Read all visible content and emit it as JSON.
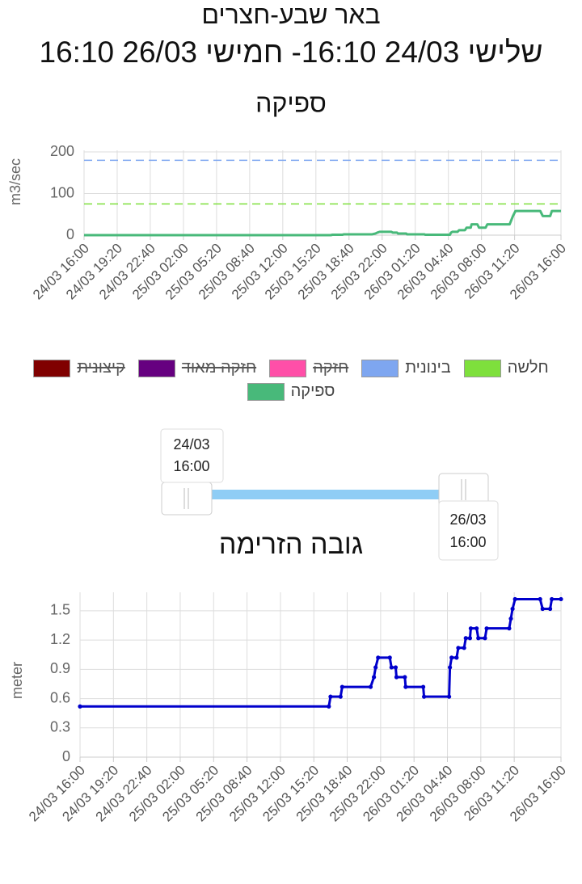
{
  "header": {
    "title": "באר שבע-חצרים",
    "subtitle": "שלישי 24/03 16:10- חמישי 26/03 16:10"
  },
  "slider": {
    "start": {
      "date": "24/03",
      "time": "16:00"
    },
    "end": {
      "date": "26/03",
      "time": "16:00"
    }
  },
  "chart_data": [
    {
      "type": "line",
      "title": "ספיקה",
      "y_label": "m3/sec",
      "x": [
        "24/03 16:00",
        "25/03 16:50",
        "25/03 17:00",
        "25/03 18:00",
        "25/03 18:10",
        "25/03 21:00",
        "25/03 21:20",
        "25/03 21:30",
        "25/03 21:45",
        "25/03 22:55",
        "25/03 23:05",
        "25/03 23:30",
        "25/03 23:35",
        "26/03 00:25",
        "26/03 00:30",
        "26/03 02:15",
        "26/03 02:20",
        "26/03 04:50",
        "26/03 04:55",
        "26/03 05:05",
        "26/03 05:35",
        "26/03 05:45",
        "26/03 06:20",
        "26/03 06:30",
        "26/03 06:55",
        "26/03 07:00",
        "26/03 07:35",
        "26/03 07:45",
        "26/03 08:25",
        "26/03 08:35",
        "26/03 10:50",
        "26/03 11:00",
        "26/03 11:10",
        "26/03 11:25",
        "26/03 13:55",
        "26/03 14:10",
        "26/03 14:55",
        "26/03 15:05",
        "26/03 16:00"
      ],
      "xlim": [
        "24/03 16:00",
        "26/03 16:00"
      ],
      "xticks": [
        "24/03 16:00",
        "24/03 19:20",
        "24/03 22:40",
        "25/03 02:00",
        "25/03 05:20",
        "25/03 08:40",
        "25/03 12:00",
        "25/03 15:20",
        "25/03 18:40",
        "25/03 22:00",
        "26/03 01:20",
        "26/03 04:40",
        "26/03 08:00",
        "26/03 11:20",
        "26/03 16:00"
      ],
      "ylim": [
        0,
        204
      ],
      "yticks": [
        0,
        100,
        200
      ],
      "grid": true,
      "series": [
        {
          "name": "חלשה",
          "color": "#7ee03c",
          "value": 75,
          "dashed": true
        },
        {
          "name": "בינונית",
          "color": "#7ea6f0",
          "value": 180,
          "dashed": true
        },
        {
          "name": "חזקה",
          "color": "#ff4fa8",
          "hidden": true
        },
        {
          "name": "חזקה מאוד",
          "color": "#660080",
          "hidden": true
        },
        {
          "name": "קיצונית",
          "color": "#800000",
          "hidden": true
        },
        {
          "name": "ספיקה",
          "color": "#48b97a",
          "values": [
            0,
            0,
            1,
            1,
            2,
            2,
            4,
            6,
            8,
            8,
            6,
            6,
            4,
            4,
            2,
            2,
            1,
            1,
            6,
            8,
            8,
            12,
            12,
            18,
            18,
            26,
            26,
            18,
            18,
            26,
            26,
            36,
            46,
            58,
            58,
            46,
            46,
            58,
            58
          ]
        }
      ]
    },
    {
      "type": "line",
      "title": "גובה הזרימה",
      "y_label": "meter",
      "x": [
        "24/03 16:00",
        "25/03 16:50",
        "25/03 17:00",
        "25/03 18:00",
        "25/03 18:10",
        "25/03 21:00",
        "25/03 21:20",
        "25/03 21:30",
        "25/03 21:45",
        "25/03 22:55",
        "25/03 23:05",
        "25/03 23:30",
        "25/03 23:35",
        "26/03 00:25",
        "26/03 00:30",
        "26/03 02:15",
        "26/03 02:20",
        "26/03 04:50",
        "26/03 04:55",
        "26/03 05:05",
        "26/03 05:35",
        "26/03 05:45",
        "26/03 06:20",
        "26/03 06:30",
        "26/03 06:55",
        "26/03 07:00",
        "26/03 07:35",
        "26/03 07:45",
        "26/03 08:25",
        "26/03 08:35",
        "26/03 10:50",
        "26/03 11:00",
        "26/03 11:10",
        "26/03 11:25",
        "26/03 13:55",
        "26/03 14:10",
        "26/03 14:55",
        "26/03 15:05",
        "26/03 16:00"
      ],
      "xlim": [
        "24/03 16:00",
        "26/03 16:00"
      ],
      "xticks": [
        "24/03 16:00",
        "24/03 19:20",
        "24/03 22:40",
        "25/03 02:00",
        "25/03 05:20",
        "25/03 08:40",
        "25/03 12:00",
        "25/03 15:20",
        "25/03 18:40",
        "25/03 22:00",
        "26/03 01:20",
        "26/03 04:40",
        "26/03 08:00",
        "26/03 11:20",
        "26/03 16:00"
      ],
      "ylim": [
        0,
        1.69
      ],
      "yticks": [
        0,
        0.3,
        0.6,
        0.9,
        1.2,
        1.5
      ],
      "grid": true,
      "markers": true,
      "series": [
        {
          "name": "גובה הזרימה",
          "color": "#0000cc",
          "values": [
            0.52,
            0.52,
            0.62,
            0.62,
            0.72,
            0.72,
            0.82,
            0.92,
            1.02,
            1.02,
            0.92,
            0.92,
            0.82,
            0.82,
            0.72,
            0.72,
            0.62,
            0.62,
            0.92,
            1.02,
            1.02,
            1.12,
            1.12,
            1.22,
            1.22,
            1.32,
            1.32,
            1.22,
            1.22,
            1.32,
            1.32,
            1.42,
            1.52,
            1.62,
            1.62,
            1.52,
            1.52,
            1.62,
            1.62
          ]
        }
      ]
    }
  ]
}
